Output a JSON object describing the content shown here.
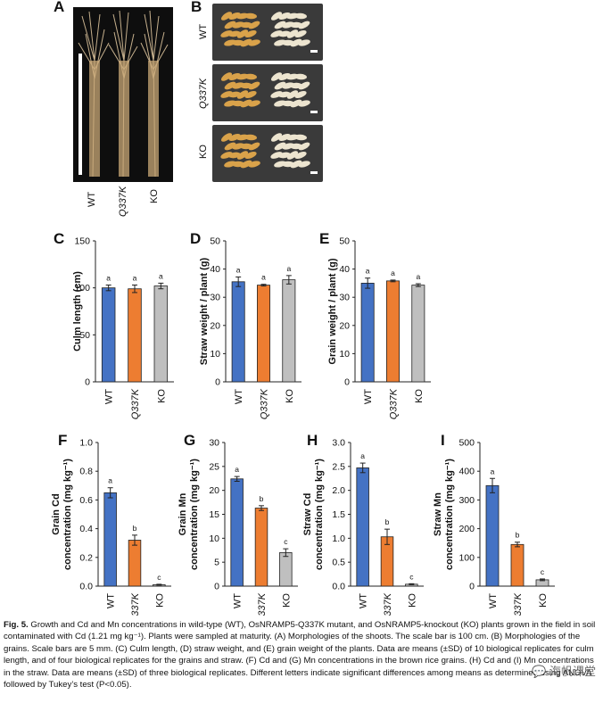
{
  "panels": {
    "A": {
      "label": "A",
      "genotypes": [
        "WT",
        "Q337K",
        "KO"
      ]
    },
    "B": {
      "label": "B",
      "rows": [
        "WT",
        "Q337K",
        "KO"
      ]
    },
    "C": {
      "label": "C"
    },
    "D": {
      "label": "D"
    },
    "E": {
      "label": "E"
    },
    "F": {
      "label": "F"
    },
    "G": {
      "label": "G"
    },
    "H": {
      "label": "H"
    },
    "I": {
      "label": "I"
    }
  },
  "colors": {
    "WT": "#4472c4",
    "Q337K": "#ed7d31",
    "KO": "#bfbfbf"
  },
  "chart_data": [
    {
      "id": "C",
      "type": "bar",
      "categories": [
        "WT",
        "Q337K",
        "KO"
      ],
      "values": [
        100,
        99,
        102
      ],
      "errors": [
        3,
        4,
        3
      ],
      "letters": [
        "a",
        "a",
        "a"
      ],
      "ylabel": "Culm length (cm)",
      "ylim": [
        0,
        150
      ],
      "ticks": [
        0,
        50,
        100,
        150
      ]
    },
    {
      "id": "D",
      "type": "bar",
      "categories": [
        "WT",
        "Q337K",
        "KO"
      ],
      "values": [
        35.5,
        34.3,
        36.2
      ],
      "errors": [
        1.7,
        0.3,
        1.5
      ],
      "letters": [
        "a",
        "a",
        "a"
      ],
      "ylabel": "Straw weight / plant (g)",
      "ylim": [
        0,
        50
      ],
      "ticks": [
        0,
        10,
        20,
        30,
        40,
        50
      ]
    },
    {
      "id": "E",
      "type": "bar",
      "categories": [
        "WT",
        "Q337K",
        "KO"
      ],
      "values": [
        35.0,
        35.8,
        34.3
      ],
      "errors": [
        1.8,
        0.3,
        0.5
      ],
      "letters": [
        "a",
        "a",
        "a"
      ],
      "ylabel": "Grain weight / plant (g)",
      "ylim": [
        0,
        50
      ],
      "ticks": [
        0,
        10,
        20,
        30,
        40,
        50
      ]
    },
    {
      "id": "F",
      "type": "bar",
      "categories": [
        "WT",
        "Q337K",
        "KO"
      ],
      "values": [
        0.65,
        0.32,
        0.01
      ],
      "errors": [
        0.035,
        0.035,
        0.003
      ],
      "letters": [
        "a",
        "b",
        "c"
      ],
      "ylabel": [
        "Grain Cd",
        "concentration (mg kg⁻¹)"
      ],
      "ylim": [
        0,
        1.0
      ],
      "ticks": [
        "0.0",
        "0.2",
        "0.4",
        "0.6",
        "0.8",
        "1.0"
      ]
    },
    {
      "id": "G",
      "type": "bar",
      "categories": [
        "WT",
        "Q337K",
        "KO"
      ],
      "values": [
        22.4,
        16.3,
        7.0
      ],
      "errors": [
        0.5,
        0.5,
        0.8
      ],
      "letters": [
        "a",
        "b",
        "c"
      ],
      "ylabel": [
        "Grain Mn",
        "concentration (mg kg⁻¹)"
      ],
      "ylim": [
        0,
        30
      ],
      "ticks": [
        "0",
        "5",
        "10",
        "15",
        "20",
        "25",
        "30"
      ]
    },
    {
      "id": "H",
      "type": "bar",
      "categories": [
        "WT",
        "Q337K",
        "KO"
      ],
      "values": [
        2.47,
        1.03,
        0.04
      ],
      "errors": [
        0.1,
        0.16,
        0.01
      ],
      "letters": [
        "a",
        "b",
        "c"
      ],
      "ylabel": [
        "Straw Cd",
        "concentration (mg kg⁻¹)"
      ],
      "ylim": [
        0,
        3.0
      ],
      "ticks": [
        "0.0",
        "0.5",
        "1.0",
        "1.5",
        "2.0",
        "2.5",
        "3.0"
      ]
    },
    {
      "id": "I",
      "type": "bar",
      "categories": [
        "WT",
        "Q337K",
        "KO"
      ],
      "values": [
        350,
        145,
        22
      ],
      "errors": [
        25,
        8,
        3
      ],
      "letters": [
        "a",
        "b",
        "c"
      ],
      "ylabel": [
        "Straw Mn",
        "concentration (mg kg⁻¹)"
      ],
      "ylim": [
        0,
        500
      ],
      "ticks": [
        "0",
        "100",
        "200",
        "300",
        "400",
        "500"
      ]
    }
  ],
  "caption": {
    "fig": "Fig. 5.",
    "text": " Growth and Cd and Mn concentrations in wild-type (WT), OsNRAMP5-Q337K mutant, and OsNRAMP5-knockout (KO) plants grown in the field in soil contaminated with Cd (1.21 mg kg⁻¹). Plants were sampled at maturity. (A) Morphologies of the shoots. The scale bar is 100 cm. (B) Morphologies of the grains. Scale bars are 5 mm. (C) Culm length, (D) straw weight, and (E) grain weight of the plants. Data are means (±SD) of 10 biological replicates for culm length, and of four biological replicates for the grains and straw. (F) Cd and (G) Mn concentrations in the brown rice grains. (H) Cd and (I) Mn concentrations in the straw. Data are means (±SD) of three biological replicates. Different letters indicate significant differences among means as determined using ANOVA followed by Tukey’s test (P<0.05)."
  },
  "watermark": "💬 海帆课堂"
}
